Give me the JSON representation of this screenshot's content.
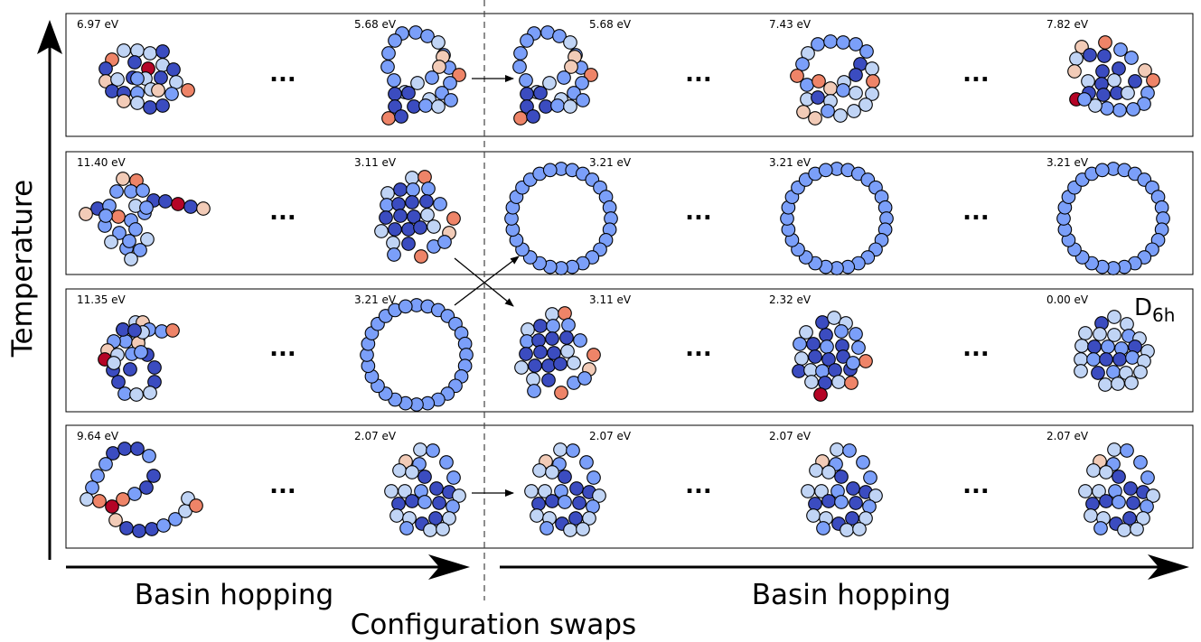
{
  "labels": {
    "temperature": "Temperature",
    "basin_left": "Basin hopping",
    "basin_right": "Basin hopping",
    "swaps": "Configuration swaps",
    "ellipsis": "...",
    "symmetry_main": "D",
    "symmetry_sub": "6h"
  },
  "colors": {
    "dark_blue": "#3b4cc0",
    "mid_blue": "#7b9ff9",
    "light_blue": "#c0d4f5",
    "peach": "#f2cbb7",
    "salmon": "#ee8468",
    "red": "#b40426",
    "dark_red": "#b40426"
  },
  "rows": [
    {
      "name": "row-1",
      "energies": [
        "6.97 eV",
        "5.68 eV",
        "5.68 eV",
        "7.43 eV",
        "7.82 eV"
      ]
    },
    {
      "name": "row-2",
      "energies": [
        "11.40 eV",
        "3.11 eV",
        "3.21 eV",
        "3.21 eV",
        "3.21 eV"
      ]
    },
    {
      "name": "row-3",
      "energies": [
        "11.35 eV",
        "3.21 eV",
        "3.11 eV",
        "2.32 eV",
        "0.00 eV"
      ]
    },
    {
      "name": "row-4",
      "energies": [
        "9.64 eV",
        "2.07 eV",
        "2.07 eV",
        "2.07 eV",
        "2.07 eV"
      ]
    }
  ]
}
